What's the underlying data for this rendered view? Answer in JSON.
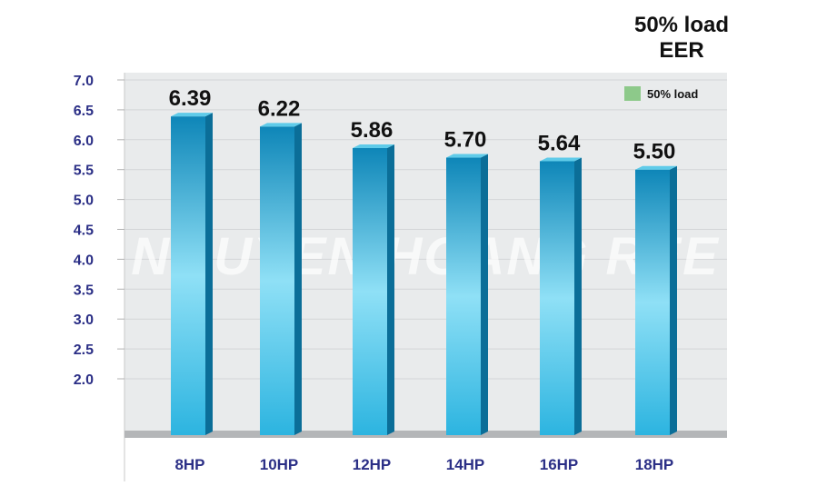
{
  "title_lines": [
    "50% load",
    "EER"
  ],
  "watermark": "NGUYEN HOANG REE",
  "colors": {
    "bar_light": "#8fe0f6",
    "bar_mid": "#2cb4e0",
    "bar_dark": "#0e86b8",
    "bar_side": "#0b6e98",
    "bar_top": "#5fcbe9",
    "legend_swatch": "#8dc98a",
    "plot_bg": "#e9ebec",
    "floor": "#b4b6b8",
    "tick_text": "#2b2f86"
  },
  "chart_data": {
    "type": "bar",
    "title": "50% load EER",
    "xlabel": "",
    "ylabel": "",
    "categories": [
      "8HP",
      "10HP",
      "12HP",
      "14HP",
      "16HP",
      "18HP"
    ],
    "series": [
      {
        "name": "50% load",
        "values": [
          6.39,
          6.22,
          5.86,
          5.7,
          5.64,
          5.5
        ]
      }
    ],
    "data_labels": [
      "6.39",
      "6.22",
      "5.86",
      "5.70",
      "5.64",
      "5.50"
    ],
    "y_ticks": [
      "7.0",
      "6.5",
      "6.0",
      "5.5",
      "5.0",
      "4.5",
      "4.0",
      "3.5",
      "3.0",
      "2.5",
      "2.0"
    ],
    "ylim": [
      2.0,
      7.0
    ],
    "grid": true,
    "legend": {
      "position": "top-right",
      "entries": [
        "50% load"
      ]
    }
  }
}
